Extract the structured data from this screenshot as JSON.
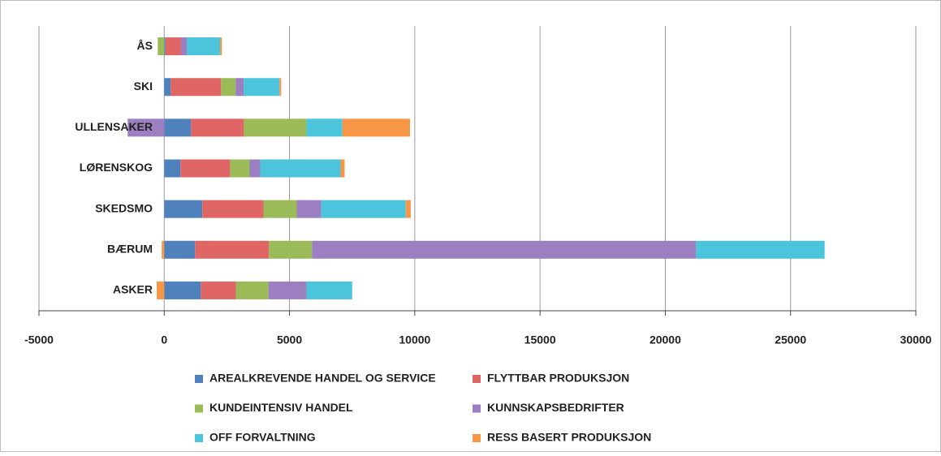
{
  "chart_data": {
    "type": "bar",
    "orientation": "horizontal",
    "stacked": true,
    "categories": [
      "ASKER",
      "BÆRUM",
      "SKEDSMO",
      "LØRENSKOG",
      "ULLENSAKER",
      "SKI",
      "ÅS"
    ],
    "series": [
      {
        "name": "AREALKREVENDE HANDEL  OG SERVICE",
        "color": "#4f81bd",
        "values": [
          1460,
          1230,
          1520,
          650,
          1070,
          260,
          50
        ]
      },
      {
        "name": "FLYTTBAR PRODUKSJON",
        "color": "#e06666",
        "values": [
          1400,
          2950,
          2440,
          1980,
          2110,
          2010,
          620
        ]
      },
      {
        "name": "KUNDEINTENSIV HANDEL",
        "color": "#9bbb59",
        "values": [
          1300,
          1720,
          1330,
          780,
          2500,
          580,
          -260
        ]
      },
      {
        "name": "KUNNSKAPSBEDRIFTER",
        "color": "#9b7fc0",
        "values": [
          1520,
          15330,
          970,
          420,
          -1460,
          320,
          230
        ]
      },
      {
        "name": "OFF FORVALTNING",
        "color": "#4bc4dc",
        "values": [
          1820,
          5130,
          3380,
          3210,
          1430,
          1430,
          1330
        ]
      },
      {
        "name": "RESS BASERT PRODUKSJON",
        "color": "#f79646",
        "values": [
          -300,
          -100,
          200,
          160,
          2700,
          70,
          70
        ]
      }
    ],
    "xlim": [
      -5000,
      30000
    ],
    "xticks": [
      -5000,
      0,
      5000,
      10000,
      15000,
      20000,
      25000,
      30000
    ],
    "grid": true,
    "legend": "bottom"
  }
}
